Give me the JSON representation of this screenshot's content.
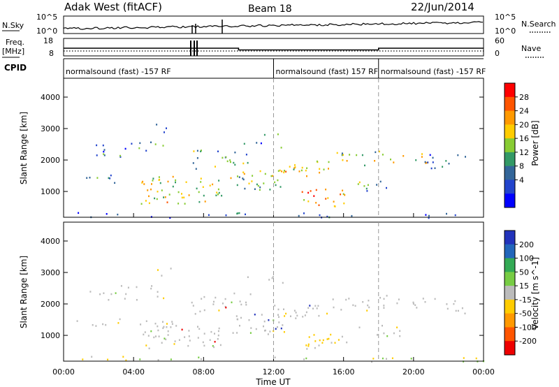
{
  "header": {
    "station": "Adak West (fitACF)",
    "beam": "Beam 18",
    "date": "22/Jun/2014"
  },
  "left_labels": {
    "nsky": "N.Sky",
    "freq": "Freq.",
    "freq_unit": "[MHz]",
    "cpid": "CPID"
  },
  "right_labels": {
    "nsearch": "N.Search",
    "nave": "Nave"
  },
  "noise_panel": {
    "left_ticks": [
      "10^5",
      "10^0"
    ],
    "right_ticks": [
      "10^5",
      "10^0"
    ]
  },
  "freq_panel": {
    "left_ticks": [
      "18",
      "8"
    ],
    "right_ticks": [
      "60",
      "0"
    ],
    "freq_steps_hours": [
      [
        0,
        10,
        12.4
      ],
      [
        10,
        18,
        11.4
      ],
      [
        18,
        24,
        12.4
      ]
    ],
    "nave_level": 14
  },
  "cpid_panel": {
    "segments": [
      {
        "start_h": 0,
        "label": "normalsound (fast) -157 RF"
      },
      {
        "start_h": 12,
        "label": "normalsound (fast) 157 RF"
      },
      {
        "start_h": 18,
        "label": "normalsound (fast) -157 RF"
      }
    ]
  },
  "chart_data": [
    {
      "type": "heatmap",
      "quantity": "Power",
      "ylabel": "Slant Range [km]",
      "xlabel": "",
      "colorbar_label": "Power [dB]",
      "colorbar_ticks": [
        "28",
        "24",
        "20",
        "16",
        "12",
        "8",
        "4"
      ],
      "colorbar_colors": [
        "#ff0000",
        "#ff5500",
        "#ff9900",
        "#ffcc00",
        "#88cc33",
        "#339966",
        "#336699",
        "#2244cc",
        "#0000ff"
      ],
      "x_range_hours": [
        0,
        24
      ],
      "ylim": [
        180,
        4600
      ],
      "yticks": [
        1000,
        2000,
        3000,
        4000
      ],
      "xticks": [
        "00:00",
        "04:00",
        "08:00",
        "12:00",
        "16:00",
        "20:00",
        "00:00"
      ]
    },
    {
      "type": "heatmap",
      "quantity": "Velocity",
      "ylabel": "Slant Range [km]",
      "xlabel": "Time UT",
      "colorbar_label": "Velocity [m s^-1]",
      "colorbar_ticks": [
        "200",
        "100",
        "50",
        "15",
        "-15",
        "-50",
        "-100",
        "-200"
      ],
      "colorbar_colors": [
        "#2233bb",
        "#2266bb",
        "#33aa55",
        "#77cc44",
        "#bbbbbb",
        "#ffcc00",
        "#ff9900",
        "#ff5500",
        "#ee0000"
      ],
      "x_range_hours": [
        0,
        24
      ],
      "ylim": [
        180,
        4600
      ],
      "yticks": [
        1000,
        2000,
        3000,
        4000
      ],
      "xticks": [
        "00:00",
        "04:00",
        "08:00",
        "12:00",
        "16:00",
        "20:00",
        "00:00"
      ]
    }
  ]
}
